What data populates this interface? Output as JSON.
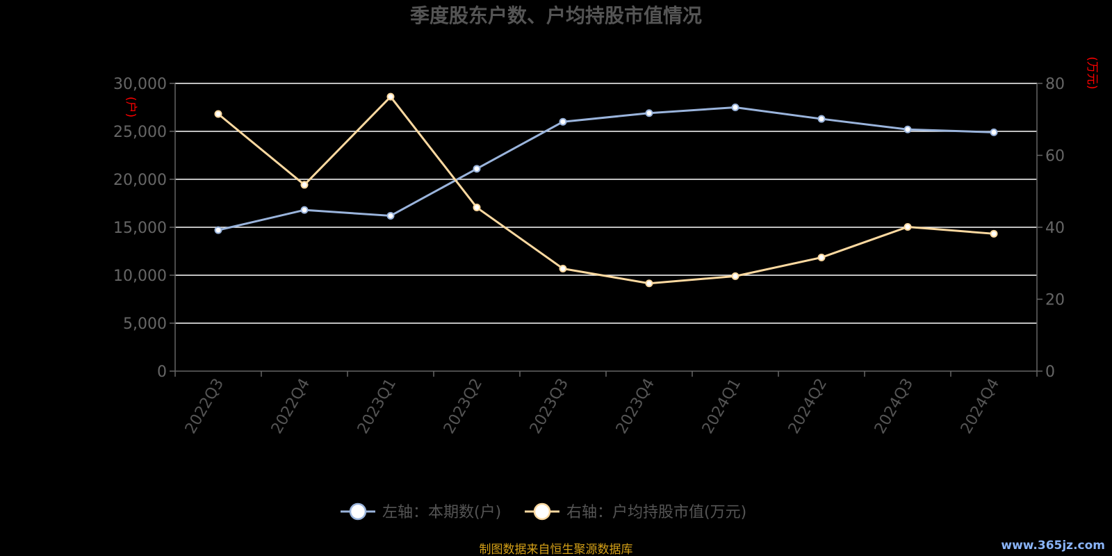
{
  "title": "季度股东户数、户均持股市值情况",
  "left_axis_unit": "(户)",
  "right_axis_unit": "(万元)",
  "legend": {
    "left_series": "左轴：本期数(户)",
    "right_series": "右轴：户均持股市值(万元)"
  },
  "source_note": "制图数据来自恒生聚源数据库",
  "watermark": "www.365jz.com",
  "colors": {
    "left_series": "#9ab4dc",
    "right_series": "#fcd9a0",
    "grid": "#ffffff",
    "axis": "#666666",
    "unit_label": "#ff0000",
    "source": "#d4a017"
  },
  "chart_data": {
    "type": "line",
    "title": "季度股东户数、户均持股市值情况",
    "categories": [
      "2022Q3",
      "2022Q4",
      "2023Q1",
      "2023Q2",
      "2023Q3",
      "2023Q4",
      "2024Q1",
      "2024Q2",
      "2024Q3",
      "2024Q4"
    ],
    "series": [
      {
        "name": "左轴：本期数(户)",
        "axis": "left",
        "values": [
          14700,
          16800,
          16200,
          21100,
          26000,
          26900,
          27500,
          26300,
          25200,
          24900
        ]
      },
      {
        "name": "右轴：户均持股市值(万元)",
        "axis": "right",
        "values": [
          71.5,
          51.8,
          76.3,
          45.5,
          28.5,
          24.4,
          26.4,
          31.6,
          40.1,
          38.2
        ]
      }
    ],
    "left_axis": {
      "unit": "(户)",
      "ylim": [
        0,
        30000
      ],
      "ticks": [
        0,
        5000,
        10000,
        15000,
        20000,
        25000,
        30000
      ],
      "tick_labels": [
        "0",
        "5,000",
        "10,000",
        "15,000",
        "20,000",
        "25,000",
        "30,000"
      ]
    },
    "right_axis": {
      "unit": "(万元)",
      "ylim": [
        0,
        80
      ],
      "ticks": [
        0,
        20,
        40,
        60,
        80
      ],
      "tick_labels": [
        "0",
        "20",
        "40",
        "60",
        "80"
      ]
    },
    "grid": true,
    "legend_position": "bottom-center"
  }
}
